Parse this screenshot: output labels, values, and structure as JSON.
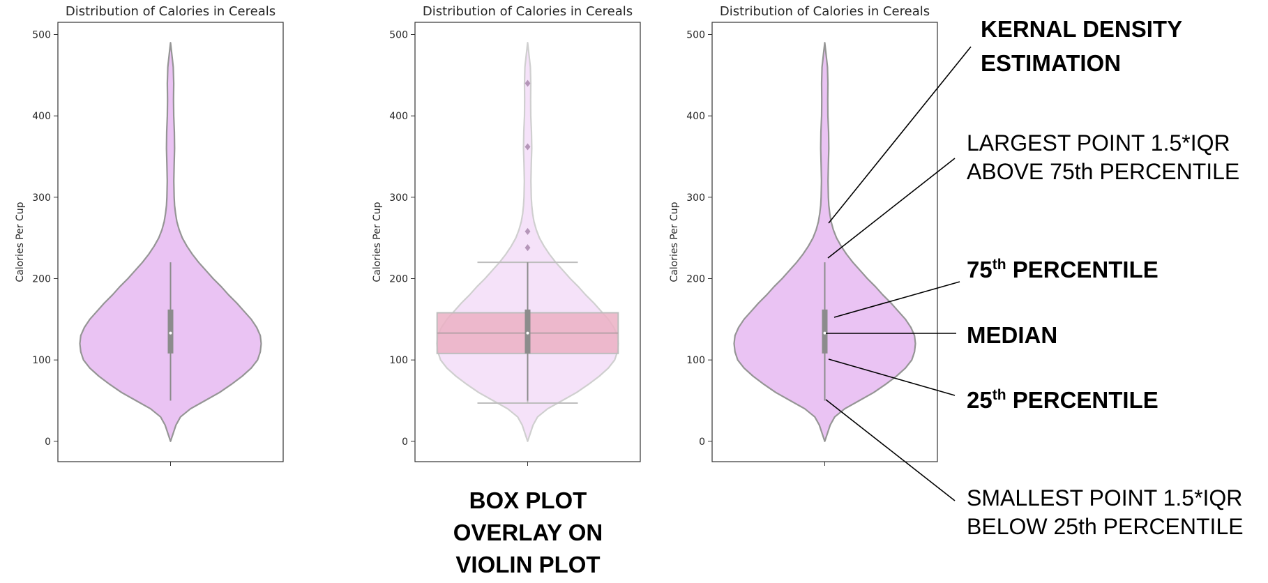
{
  "chart_data": [
    {
      "type": "violin",
      "title": "Distribution of Calories in Cereals",
      "ylabel": "Calories Per Cup",
      "xlabel": "",
      "ylim": [
        -25,
        515
      ],
      "yticks": [
        0,
        100,
        200,
        300,
        400,
        500
      ],
      "yticklabels": [
        "0",
        "100",
        "200",
        "300",
        "400",
        "500"
      ],
      "grid": false,
      "violin_color": "#eac3f3",
      "edge_color": "#959595",
      "kde_profile": [
        [
          0,
          0
        ],
        [
          10,
          0.03
        ],
        [
          20,
          0.06
        ],
        [
          30,
          0.11
        ],
        [
          40,
          0.22
        ],
        [
          50,
          0.38
        ],
        [
          60,
          0.54
        ],
        [
          70,
          0.67
        ],
        [
          80,
          0.79
        ],
        [
          90,
          0.89
        ],
        [
          100,
          0.96
        ],
        [
          110,
          0.99
        ],
        [
          120,
          1.0
        ],
        [
          130,
          0.99
        ],
        [
          140,
          0.95
        ],
        [
          150,
          0.89
        ],
        [
          160,
          0.81
        ],
        [
          170,
          0.73
        ],
        [
          180,
          0.64
        ],
        [
          190,
          0.56
        ],
        [
          200,
          0.47
        ],
        [
          210,
          0.39
        ],
        [
          220,
          0.31
        ],
        [
          230,
          0.24
        ],
        [
          240,
          0.18
        ],
        [
          250,
          0.13
        ],
        [
          260,
          0.095
        ],
        [
          270,
          0.07
        ],
        [
          280,
          0.055
        ],
        [
          290,
          0.045
        ],
        [
          300,
          0.04
        ],
        [
          320,
          0.036
        ],
        [
          340,
          0.04
        ],
        [
          360,
          0.045
        ],
        [
          380,
          0.042
        ],
        [
          400,
          0.035
        ],
        [
          420,
          0.033
        ],
        [
          440,
          0.035
        ],
        [
          460,
          0.03
        ],
        [
          480,
          0.01
        ],
        [
          490,
          0
        ]
      ],
      "box": {
        "q1": 108,
        "median": 133,
        "q3": 162,
        "whisker_low": 50,
        "whisker_high": 220
      }
    },
    {
      "type": "violin",
      "title": "Distribution of Calories in Cereals",
      "ylabel": "Calories Per Cup",
      "xlabel": "",
      "ylim": [
        -25,
        515
      ],
      "yticks": [
        0,
        100,
        200,
        300,
        400,
        500
      ],
      "yticklabels": [
        "0",
        "100",
        "200",
        "300",
        "400",
        "500"
      ],
      "grid": false,
      "violin_color": "#f5e2f9",
      "edge_color": "#cfcfcf",
      "kde_profile": [
        [
          0,
          0
        ],
        [
          10,
          0.03
        ],
        [
          20,
          0.06
        ],
        [
          30,
          0.11
        ],
        [
          40,
          0.22
        ],
        [
          50,
          0.38
        ],
        [
          60,
          0.54
        ],
        [
          70,
          0.67
        ],
        [
          80,
          0.79
        ],
        [
          90,
          0.89
        ],
        [
          100,
          0.96
        ],
        [
          110,
          0.99
        ],
        [
          120,
          1.0
        ],
        [
          130,
          0.99
        ],
        [
          140,
          0.95
        ],
        [
          150,
          0.89
        ],
        [
          160,
          0.81
        ],
        [
          170,
          0.73
        ],
        [
          180,
          0.64
        ],
        [
          190,
          0.56
        ],
        [
          200,
          0.47
        ],
        [
          210,
          0.39
        ],
        [
          220,
          0.31
        ],
        [
          230,
          0.24
        ],
        [
          240,
          0.18
        ],
        [
          250,
          0.13
        ],
        [
          260,
          0.095
        ],
        [
          270,
          0.07
        ],
        [
          280,
          0.055
        ],
        [
          290,
          0.045
        ],
        [
          300,
          0.04
        ],
        [
          320,
          0.036
        ],
        [
          340,
          0.04
        ],
        [
          360,
          0.045
        ],
        [
          380,
          0.042
        ],
        [
          400,
          0.035
        ],
        [
          420,
          0.033
        ],
        [
          440,
          0.035
        ],
        [
          460,
          0.03
        ],
        [
          480,
          0.01
        ],
        [
          490,
          0
        ]
      ],
      "overlay_box": {
        "q1": 108,
        "median": 133,
        "q3": 158,
        "whisker_low": 47,
        "whisker_high": 220,
        "fill": "#ebb0c4",
        "edge": "#bdbdbd"
      },
      "inner_box": {
        "q1": 108,
        "median": 133,
        "q3": 162,
        "whisker_low": 50,
        "whisker_high": 220
      },
      "outliers": [
        440,
        362,
        258,
        238
      ]
    },
    {
      "type": "violin",
      "title": "Distribution of Calories in Cereals",
      "ylabel": "Calories Per Cup",
      "xlabel": "",
      "ylim": [
        -25,
        515
      ],
      "yticks": [
        0,
        100,
        200,
        300,
        400,
        500
      ],
      "yticklabels": [
        "0",
        "100",
        "200",
        "300",
        "400",
        "500"
      ],
      "grid": false,
      "violin_color": "#eac3f3",
      "edge_color": "#959595",
      "kde_profile": [
        [
          0,
          0
        ],
        [
          10,
          0.03
        ],
        [
          20,
          0.06
        ],
        [
          30,
          0.11
        ],
        [
          40,
          0.22
        ],
        [
          50,
          0.38
        ],
        [
          60,
          0.54
        ],
        [
          70,
          0.67
        ],
        [
          80,
          0.79
        ],
        [
          90,
          0.89
        ],
        [
          100,
          0.96
        ],
        [
          110,
          0.99
        ],
        [
          120,
          1.0
        ],
        [
          130,
          0.99
        ],
        [
          140,
          0.95
        ],
        [
          150,
          0.89
        ],
        [
          160,
          0.81
        ],
        [
          170,
          0.73
        ],
        [
          180,
          0.64
        ],
        [
          190,
          0.56
        ],
        [
          200,
          0.47
        ],
        [
          210,
          0.39
        ],
        [
          220,
          0.31
        ],
        [
          230,
          0.24
        ],
        [
          240,
          0.18
        ],
        [
          250,
          0.13
        ],
        [
          260,
          0.095
        ],
        [
          270,
          0.07
        ],
        [
          280,
          0.055
        ],
        [
          290,
          0.045
        ],
        [
          300,
          0.04
        ],
        [
          320,
          0.036
        ],
        [
          340,
          0.04
        ],
        [
          360,
          0.045
        ],
        [
          380,
          0.042
        ],
        [
          400,
          0.035
        ],
        [
          420,
          0.033
        ],
        [
          440,
          0.035
        ],
        [
          460,
          0.03
        ],
        [
          480,
          0.01
        ],
        [
          490,
          0
        ]
      ],
      "box": {
        "q1": 108,
        "median": 133,
        "q3": 162,
        "whisker_low": 50,
        "whisker_high": 220
      }
    }
  ],
  "annotations": {
    "kde_line1": "KERNAL DENSITY",
    "kde_line2": "ESTIMATION",
    "largest_line1": "LARGEST POINT 1.5*IQR",
    "largest_line2": "ABOVE 75th PERCENTILE",
    "p75_num": "75",
    "p75_sup": "th",
    "p75_word": " PERCENTILE",
    "median": "MEDIAN",
    "p25_num": "25",
    "p25_sup": "th",
    "p25_word": " PERCENTILE",
    "smallest_line1": "SMALLEST POINT 1.5*IQR",
    "smallest_line2": "BELOW 25th PERCENTILE"
  },
  "caption": {
    "line1": "BOX PLOT",
    "line2": "OVERLAY ON",
    "line3": "VIOLIN PLOT"
  }
}
